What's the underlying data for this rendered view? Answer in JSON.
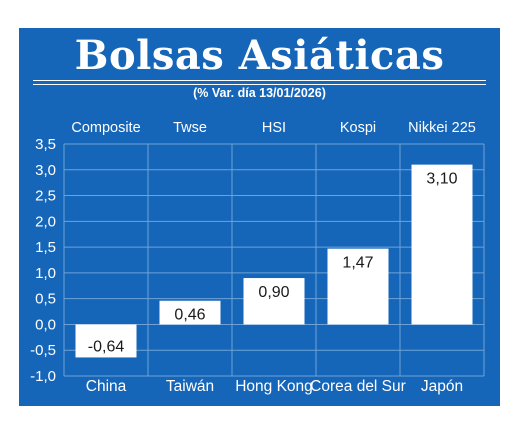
{
  "chart_data": {
    "type": "bar",
    "title": "Bolsas Asiáticas",
    "subtitle": "(% Var. día  13/01/2026)",
    "indices": [
      "Composite",
      "Twse",
      "HSI",
      "Kospi",
      "Nikkei 225"
    ],
    "categories": [
      "China",
      "Taiwán",
      "Hong Kong",
      "Corea del Sur",
      "Japón"
    ],
    "values": [
      -0.64,
      0.46,
      0.9,
      1.47,
      3.1
    ],
    "value_labels": [
      "-0,64",
      "0,46",
      "0,90",
      "1,47",
      "3,10"
    ],
    "ylim": [
      -1.0,
      3.5
    ],
    "yticks": [
      3.5,
      3.0,
      2.5,
      2.0,
      1.5,
      1.0,
      0.5,
      0.0,
      -0.5,
      -1.0
    ],
    "ytick_labels": [
      "3,5",
      "3,0",
      "2,5",
      "2,0",
      "1,5",
      "1,0",
      "0,5",
      "0,0",
      "-0,5",
      "-1,0"
    ],
    "grid": true,
    "colors": {
      "background": "#1565b8",
      "bar": "#ffffff",
      "grid": "#6fa3d8",
      "text": "#ffffff"
    }
  }
}
